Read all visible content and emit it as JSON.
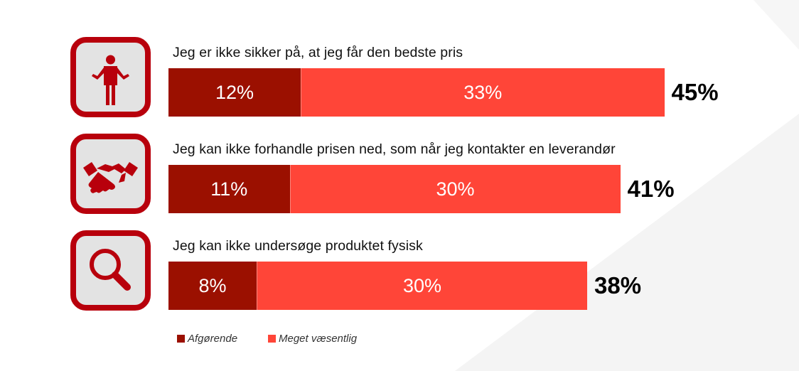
{
  "chart_data": {
    "type": "bar",
    "stacked": true,
    "orientation": "horizontal",
    "categories": [
      "Jeg er ikke sikker på, at jeg får den bedste pris",
      "Jeg kan ikke forhandle prisen ned, som når jeg kontakter en leverandør",
      "Jeg kan ikke undersøge produktet fysisk"
    ],
    "category_icons": [
      "person-shrug-icon",
      "handshake-icon",
      "magnifier-icon"
    ],
    "series": [
      {
        "name": "Afgørende",
        "values": [
          12,
          11,
          8
        ],
        "labels": [
          "12%",
          "11%",
          "8%"
        ],
        "color": "#9b1000"
      },
      {
        "name": "Meget væsentlig",
        "values": [
          33,
          30,
          30
        ],
        "labels": [
          "33%",
          "30%",
          "30%"
        ],
        "color": "#ff4538"
      }
    ],
    "totals": [
      45,
      41,
      38
    ],
    "total_labels": [
      "45%",
      "41%",
      "38%"
    ],
    "legend_position": "bottom-left",
    "grid": false
  },
  "colors": {
    "icon_border": "#b8000c",
    "icon_fill": "#e3e3e3",
    "icon_glyph": "#b8000c"
  }
}
